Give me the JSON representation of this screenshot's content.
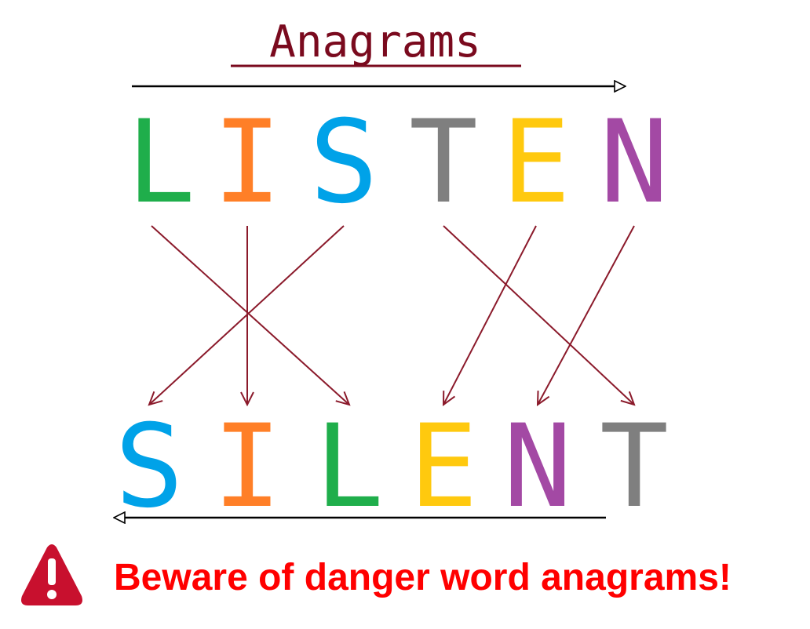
{
  "title": "Anagrams",
  "source_word": [
    "L",
    "I",
    "S",
    "T",
    "E",
    "N"
  ],
  "target_word": [
    "S",
    "I",
    "L",
    "E",
    "N",
    "T"
  ],
  "letter_colors": {
    "L": "#1fae4b",
    "I": "#ff7f27",
    "S": "#00a2e8",
    "T": "#7f7f7f",
    "E": "#ffc90e",
    "N": "#a349a4"
  },
  "mapping": [
    {
      "from": "L",
      "to": "L"
    },
    {
      "from": "I",
      "to": "I"
    },
    {
      "from": "S",
      "to": "S"
    },
    {
      "from": "T",
      "to": "T"
    },
    {
      "from": "E",
      "to": "E"
    },
    {
      "from": "N",
      "to": "N"
    }
  ],
  "warning": {
    "icon": "exclamation-triangle-icon",
    "text": "Beware of danger word anagrams!",
    "text_color": "#ff0000",
    "icon_color": "#c8102e"
  },
  "colors": {
    "title": "#7a0a1e",
    "mapping_arrows": "#8b1a2b",
    "direction_arrows": "#000000"
  }
}
